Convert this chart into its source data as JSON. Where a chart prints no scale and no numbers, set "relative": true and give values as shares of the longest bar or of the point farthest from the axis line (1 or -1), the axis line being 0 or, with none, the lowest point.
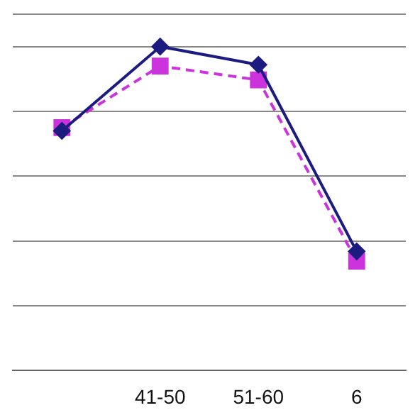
{
  "chart_data": {
    "type": "line",
    "categories": [
      null,
      "41-50",
      "51-60",
      "6"
    ],
    "relative": true,
    "grid": "y",
    "series": [
      {
        "color": "#1c1c80",
        "values": [
          0.74,
          1,
          0.944,
          0.368
        ],
        "marker": "diamond",
        "line_style": "solid"
      },
      {
        "color": "#cc33dd",
        "values": [
          0.75,
          0.94,
          0.897,
          0.338
        ],
        "marker": "square",
        "line_style": "dashed"
      }
    ]
  }
}
